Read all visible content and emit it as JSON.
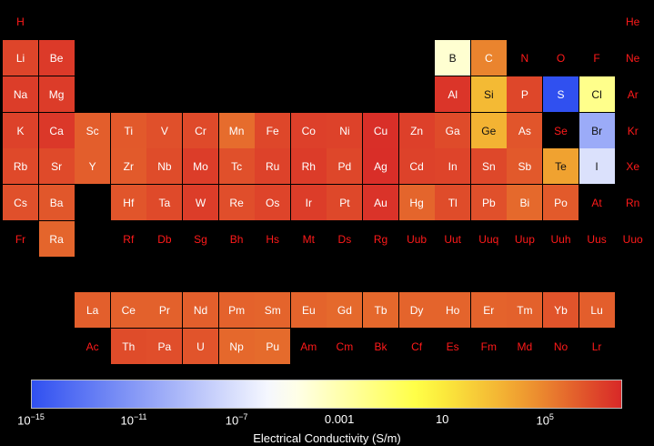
{
  "chart_data": {
    "type": "heatmap",
    "colorbar": {
      "label": "Electrical Conductivity (S/m)",
      "scale": "log",
      "range": [
        1e-15,
        100000000.0
      ],
      "colors": [
        "#3050f0",
        "#ffffff",
        "#ffff40",
        "#f0a030",
        "#d82828"
      ],
      "ticks": [
        {
          "base": "10",
          "exp": "−15",
          "value": 1e-15
        },
        {
          "base": "10",
          "exp": "−11",
          "value": 1e-11
        },
        {
          "base": "10",
          "exp": "−7",
          "value": 1e-07
        },
        {
          "base": "0.001",
          "exp": "",
          "value": 0.001
        },
        {
          "base": "10",
          "exp": "",
          "value": 10
        },
        {
          "base": "10",
          "exp": "5",
          "value": 100000.0
        }
      ]
    },
    "elements": [
      {
        "symbol": "H",
        "row": 0,
        "col": 0,
        "value": null
      },
      {
        "symbol": "He",
        "row": 0,
        "col": 17,
        "value": null
      },
      {
        "symbol": "Li",
        "row": 1,
        "col": 0,
        "value": 11000000.0
      },
      {
        "symbol": "Be",
        "row": 1,
        "col": 1,
        "value": 25000000.0
      },
      {
        "symbol": "B",
        "row": 1,
        "col": 12,
        "value": 0.0001
      },
      {
        "symbol": "C",
        "row": 1,
        "col": 13,
        "value": 100000.0
      },
      {
        "symbol": "N",
        "row": 1,
        "col": 14,
        "value": null
      },
      {
        "symbol": "O",
        "row": 1,
        "col": 15,
        "value": null
      },
      {
        "symbol": "F",
        "row": 1,
        "col": 16,
        "value": null
      },
      {
        "symbol": "Ne",
        "row": 1,
        "col": 17,
        "value": null
      },
      {
        "symbol": "Na",
        "row": 2,
        "col": 0,
        "value": 21000000.0
      },
      {
        "symbol": "Mg",
        "row": 2,
        "col": 1,
        "value": 23000000.0
      },
      {
        "symbol": "Al",
        "row": 2,
        "col": 12,
        "value": 38000000.0
      },
      {
        "symbol": "Si",
        "row": 2,
        "col": 13,
        "value": 1000.0
      },
      {
        "symbol": "P",
        "row": 2,
        "col": 14,
        "value": 10000000.0
      },
      {
        "symbol": "S",
        "row": 2,
        "col": 15,
        "value": 1e-15
      },
      {
        "symbol": "Cl",
        "row": 2,
        "col": 16,
        "value": 0.01
      },
      {
        "symbol": "Ar",
        "row": 2,
        "col": 17,
        "value": null
      },
      {
        "symbol": "K",
        "row": 3,
        "col": 0,
        "value": 14000000.0
      },
      {
        "symbol": "Ca",
        "row": 3,
        "col": 1,
        "value": 29000000.0
      },
      {
        "symbol": "Sc",
        "row": 3,
        "col": 2,
        "value": 1800000.0
      },
      {
        "symbol": "Ti",
        "row": 3,
        "col": 3,
        "value": 2500000.0
      },
      {
        "symbol": "V",
        "row": 3,
        "col": 4,
        "value": 5000000.0
      },
      {
        "symbol": "Cr",
        "row": 3,
        "col": 5,
        "value": 7900000.0
      },
      {
        "symbol": "Mn",
        "row": 3,
        "col": 6,
        "value": 620000.0
      },
      {
        "symbol": "Fe",
        "row": 3,
        "col": 7,
        "value": 10000000.0
      },
      {
        "symbol": "Co",
        "row": 3,
        "col": 8,
        "value": 17000000.0
      },
      {
        "symbol": "Ni",
        "row": 3,
        "col": 9,
        "value": 14000000.0
      },
      {
        "symbol": "Cu",
        "row": 3,
        "col": 10,
        "value": 59000000.0
      },
      {
        "symbol": "Zn",
        "row": 3,
        "col": 11,
        "value": 17000000.0
      },
      {
        "symbol": "Ga",
        "row": 3,
        "col": 12,
        "value": 7100000.0
      },
      {
        "symbol": "Ge",
        "row": 3,
        "col": 13,
        "value": 2000.0
      },
      {
        "symbol": "As",
        "row": 3,
        "col": 14,
        "value": 3300000.0
      },
      {
        "symbol": "Se",
        "row": 3,
        "col": 15,
        "value": null
      },
      {
        "symbol": "Br",
        "row": 3,
        "col": 16,
        "value": 1e-10
      },
      {
        "symbol": "Kr",
        "row": 3,
        "col": 17,
        "value": null
      },
      {
        "symbol": "Rb",
        "row": 4,
        "col": 0,
        "value": 8300000.0
      },
      {
        "symbol": "Sr",
        "row": 4,
        "col": 1,
        "value": 7700000.0
      },
      {
        "symbol": "Y",
        "row": 4,
        "col": 2,
        "value": 1800000.0
      },
      {
        "symbol": "Zr",
        "row": 4,
        "col": 3,
        "value": 2400000.0
      },
      {
        "symbol": "Nb",
        "row": 4,
        "col": 4,
        "value": 6700000.0
      },
      {
        "symbol": "Mo",
        "row": 4,
        "col": 5,
        "value": 20000000.0
      },
      {
        "symbol": "Tc",
        "row": 4,
        "col": 6,
        "value": 5000000.0
      },
      {
        "symbol": "Ru",
        "row": 4,
        "col": 7,
        "value": 14000000.0
      },
      {
        "symbol": "Rh",
        "row": 4,
        "col": 8,
        "value": 23000000.0
      },
      {
        "symbol": "Pd",
        "row": 4,
        "col": 9,
        "value": 10000000.0
      },
      {
        "symbol": "Ag",
        "row": 4,
        "col": 10,
        "value": 62000000.0
      },
      {
        "symbol": "Cd",
        "row": 4,
        "col": 11,
        "value": 14000000.0
      },
      {
        "symbol": "In",
        "row": 4,
        "col": 12,
        "value": 12000000.0
      },
      {
        "symbol": "Sn",
        "row": 4,
        "col": 13,
        "value": 9100000.0
      },
      {
        "symbol": "Sb",
        "row": 4,
        "col": 14,
        "value": 2500000.0
      },
      {
        "symbol": "Te",
        "row": 4,
        "col": 15,
        "value": 10000.0
      },
      {
        "symbol": "I",
        "row": 4,
        "col": 16,
        "value": 1e-07
      },
      {
        "symbol": "Xe",
        "row": 4,
        "col": 17,
        "value": null
      },
      {
        "symbol": "Cs",
        "row": 5,
        "col": 0,
        "value": 5000000.0
      },
      {
        "symbol": "Ba",
        "row": 5,
        "col": 1,
        "value": 2900000.0
      },
      {
        "symbol": "Hf",
        "row": 5,
        "col": 3,
        "value": 3300000.0
      },
      {
        "symbol": "Ta",
        "row": 5,
        "col": 4,
        "value": 7700000.0
      },
      {
        "symbol": "W",
        "row": 5,
        "col": 5,
        "value": 20000000.0
      },
      {
        "symbol": "Re",
        "row": 5,
        "col": 6,
        "value": 5600000.0
      },
      {
        "symbol": "Os",
        "row": 5,
        "col": 7,
        "value": 12000000.0
      },
      {
        "symbol": "Ir",
        "row": 5,
        "col": 8,
        "value": 21000000.0
      },
      {
        "symbol": "Pt",
        "row": 5,
        "col": 9,
        "value": 9400000.0
      },
      {
        "symbol": "Au",
        "row": 5,
        "col": 10,
        "value": 45000000.0
      },
      {
        "symbol": "Hg",
        "row": 5,
        "col": 11,
        "value": 1000000.0
      },
      {
        "symbol": "Tl",
        "row": 5,
        "col": 12,
        "value": 6700000.0
      },
      {
        "symbol": "Pb",
        "row": 5,
        "col": 13,
        "value": 4800000.0
      },
      {
        "symbol": "Bi",
        "row": 5,
        "col": 14,
        "value": 770000.0
      },
      {
        "symbol": "Po",
        "row": 5,
        "col": 15,
        "value": 2300000.0
      },
      {
        "symbol": "At",
        "row": 5,
        "col": 16,
        "value": null
      },
      {
        "symbol": "Rn",
        "row": 5,
        "col": 17,
        "value": null
      },
      {
        "symbol": "Fr",
        "row": 6,
        "col": 0,
        "value": null
      },
      {
        "symbol": "Ra",
        "row": 6,
        "col": 1,
        "value": 1000000.0
      },
      {
        "symbol": "Rf",
        "row": 6,
        "col": 3,
        "value": null
      },
      {
        "symbol": "Db",
        "row": 6,
        "col": 4,
        "value": null
      },
      {
        "symbol": "Sg",
        "row": 6,
        "col": 5,
        "value": null
      },
      {
        "symbol": "Bh",
        "row": 6,
        "col": 6,
        "value": null
      },
      {
        "symbol": "Hs",
        "row": 6,
        "col": 7,
        "value": null
      },
      {
        "symbol": "Mt",
        "row": 6,
        "col": 8,
        "value": null
      },
      {
        "symbol": "Ds",
        "row": 6,
        "col": 9,
        "value": null
      },
      {
        "symbol": "Rg",
        "row": 6,
        "col": 10,
        "value": null
      },
      {
        "symbol": "Uub",
        "row": 6,
        "col": 11,
        "value": null
      },
      {
        "symbol": "Uut",
        "row": 6,
        "col": 12,
        "value": null
      },
      {
        "symbol": "Uuq",
        "row": 6,
        "col": 13,
        "value": null
      },
      {
        "symbol": "Uup",
        "row": 6,
        "col": 14,
        "value": null
      },
      {
        "symbol": "Uuh",
        "row": 6,
        "col": 15,
        "value": null
      },
      {
        "symbol": "Uus",
        "row": 6,
        "col": 16,
        "value": null
      },
      {
        "symbol": "Uuo",
        "row": 6,
        "col": 17,
        "value": null
      },
      {
        "symbol": "La",
        "row": 8,
        "col": 2,
        "value": 1600000.0
      },
      {
        "symbol": "Ce",
        "row": 8,
        "col": 3,
        "value": 1400000.0
      },
      {
        "symbol": "Pr",
        "row": 8,
        "col": 4,
        "value": 1400000.0
      },
      {
        "symbol": "Nd",
        "row": 8,
        "col": 5,
        "value": 1600000.0
      },
      {
        "symbol": "Pm",
        "row": 8,
        "col": 6,
        "value": 1300000.0
      },
      {
        "symbol": "Sm",
        "row": 8,
        "col": 7,
        "value": 1100000.0
      },
      {
        "symbol": "Eu",
        "row": 8,
        "col": 8,
        "value": 1100000.0
      },
      {
        "symbol": "Gd",
        "row": 8,
        "col": 9,
        "value": 770000.0
      },
      {
        "symbol": "Tb",
        "row": 8,
        "col": 10,
        "value": 830000.0
      },
      {
        "symbol": "Dy",
        "row": 8,
        "col": 11,
        "value": 1100000.0
      },
      {
        "symbol": "Ho",
        "row": 8,
        "col": 12,
        "value": 1100000.0
      },
      {
        "symbol": "Er",
        "row": 8,
        "col": 13,
        "value": 1200000.0
      },
      {
        "symbol": "Tm",
        "row": 8,
        "col": 14,
        "value": 1400000.0
      },
      {
        "symbol": "Yb",
        "row": 8,
        "col": 15,
        "value": 3600000.0
      },
      {
        "symbol": "Lu",
        "row": 8,
        "col": 16,
        "value": 1800000.0
      },
      {
        "symbol": "Ac",
        "row": 9,
        "col": 2,
        "value": null
      },
      {
        "symbol": "Th",
        "row": 9,
        "col": 3,
        "value": 6700000.0
      },
      {
        "symbol": "Pa",
        "row": 9,
        "col": 4,
        "value": 5600000.0
      },
      {
        "symbol": "U",
        "row": 9,
        "col": 5,
        "value": 3600000.0
      },
      {
        "symbol": "Np",
        "row": 9,
        "col": 6,
        "value": 830000.0
      },
      {
        "symbol": "Pu",
        "row": 9,
        "col": 7,
        "value": 670000.0
      },
      {
        "symbol": "Am",
        "row": 9,
        "col": 8,
        "value": null
      },
      {
        "symbol": "Cm",
        "row": 9,
        "col": 9,
        "value": null
      },
      {
        "symbol": "Bk",
        "row": 9,
        "col": 10,
        "value": null
      },
      {
        "symbol": "Cf",
        "row": 9,
        "col": 11,
        "value": null
      },
      {
        "symbol": "Es",
        "row": 9,
        "col": 12,
        "value": null
      },
      {
        "symbol": "Fm",
        "row": 9,
        "col": 13,
        "value": null
      },
      {
        "symbol": "Md",
        "row": 9,
        "col": 14,
        "value": null
      },
      {
        "symbol": "No",
        "row": 9,
        "col": 15,
        "value": null
      },
      {
        "symbol": "Lr",
        "row": 9,
        "col": 16,
        "value": null
      }
    ]
  }
}
